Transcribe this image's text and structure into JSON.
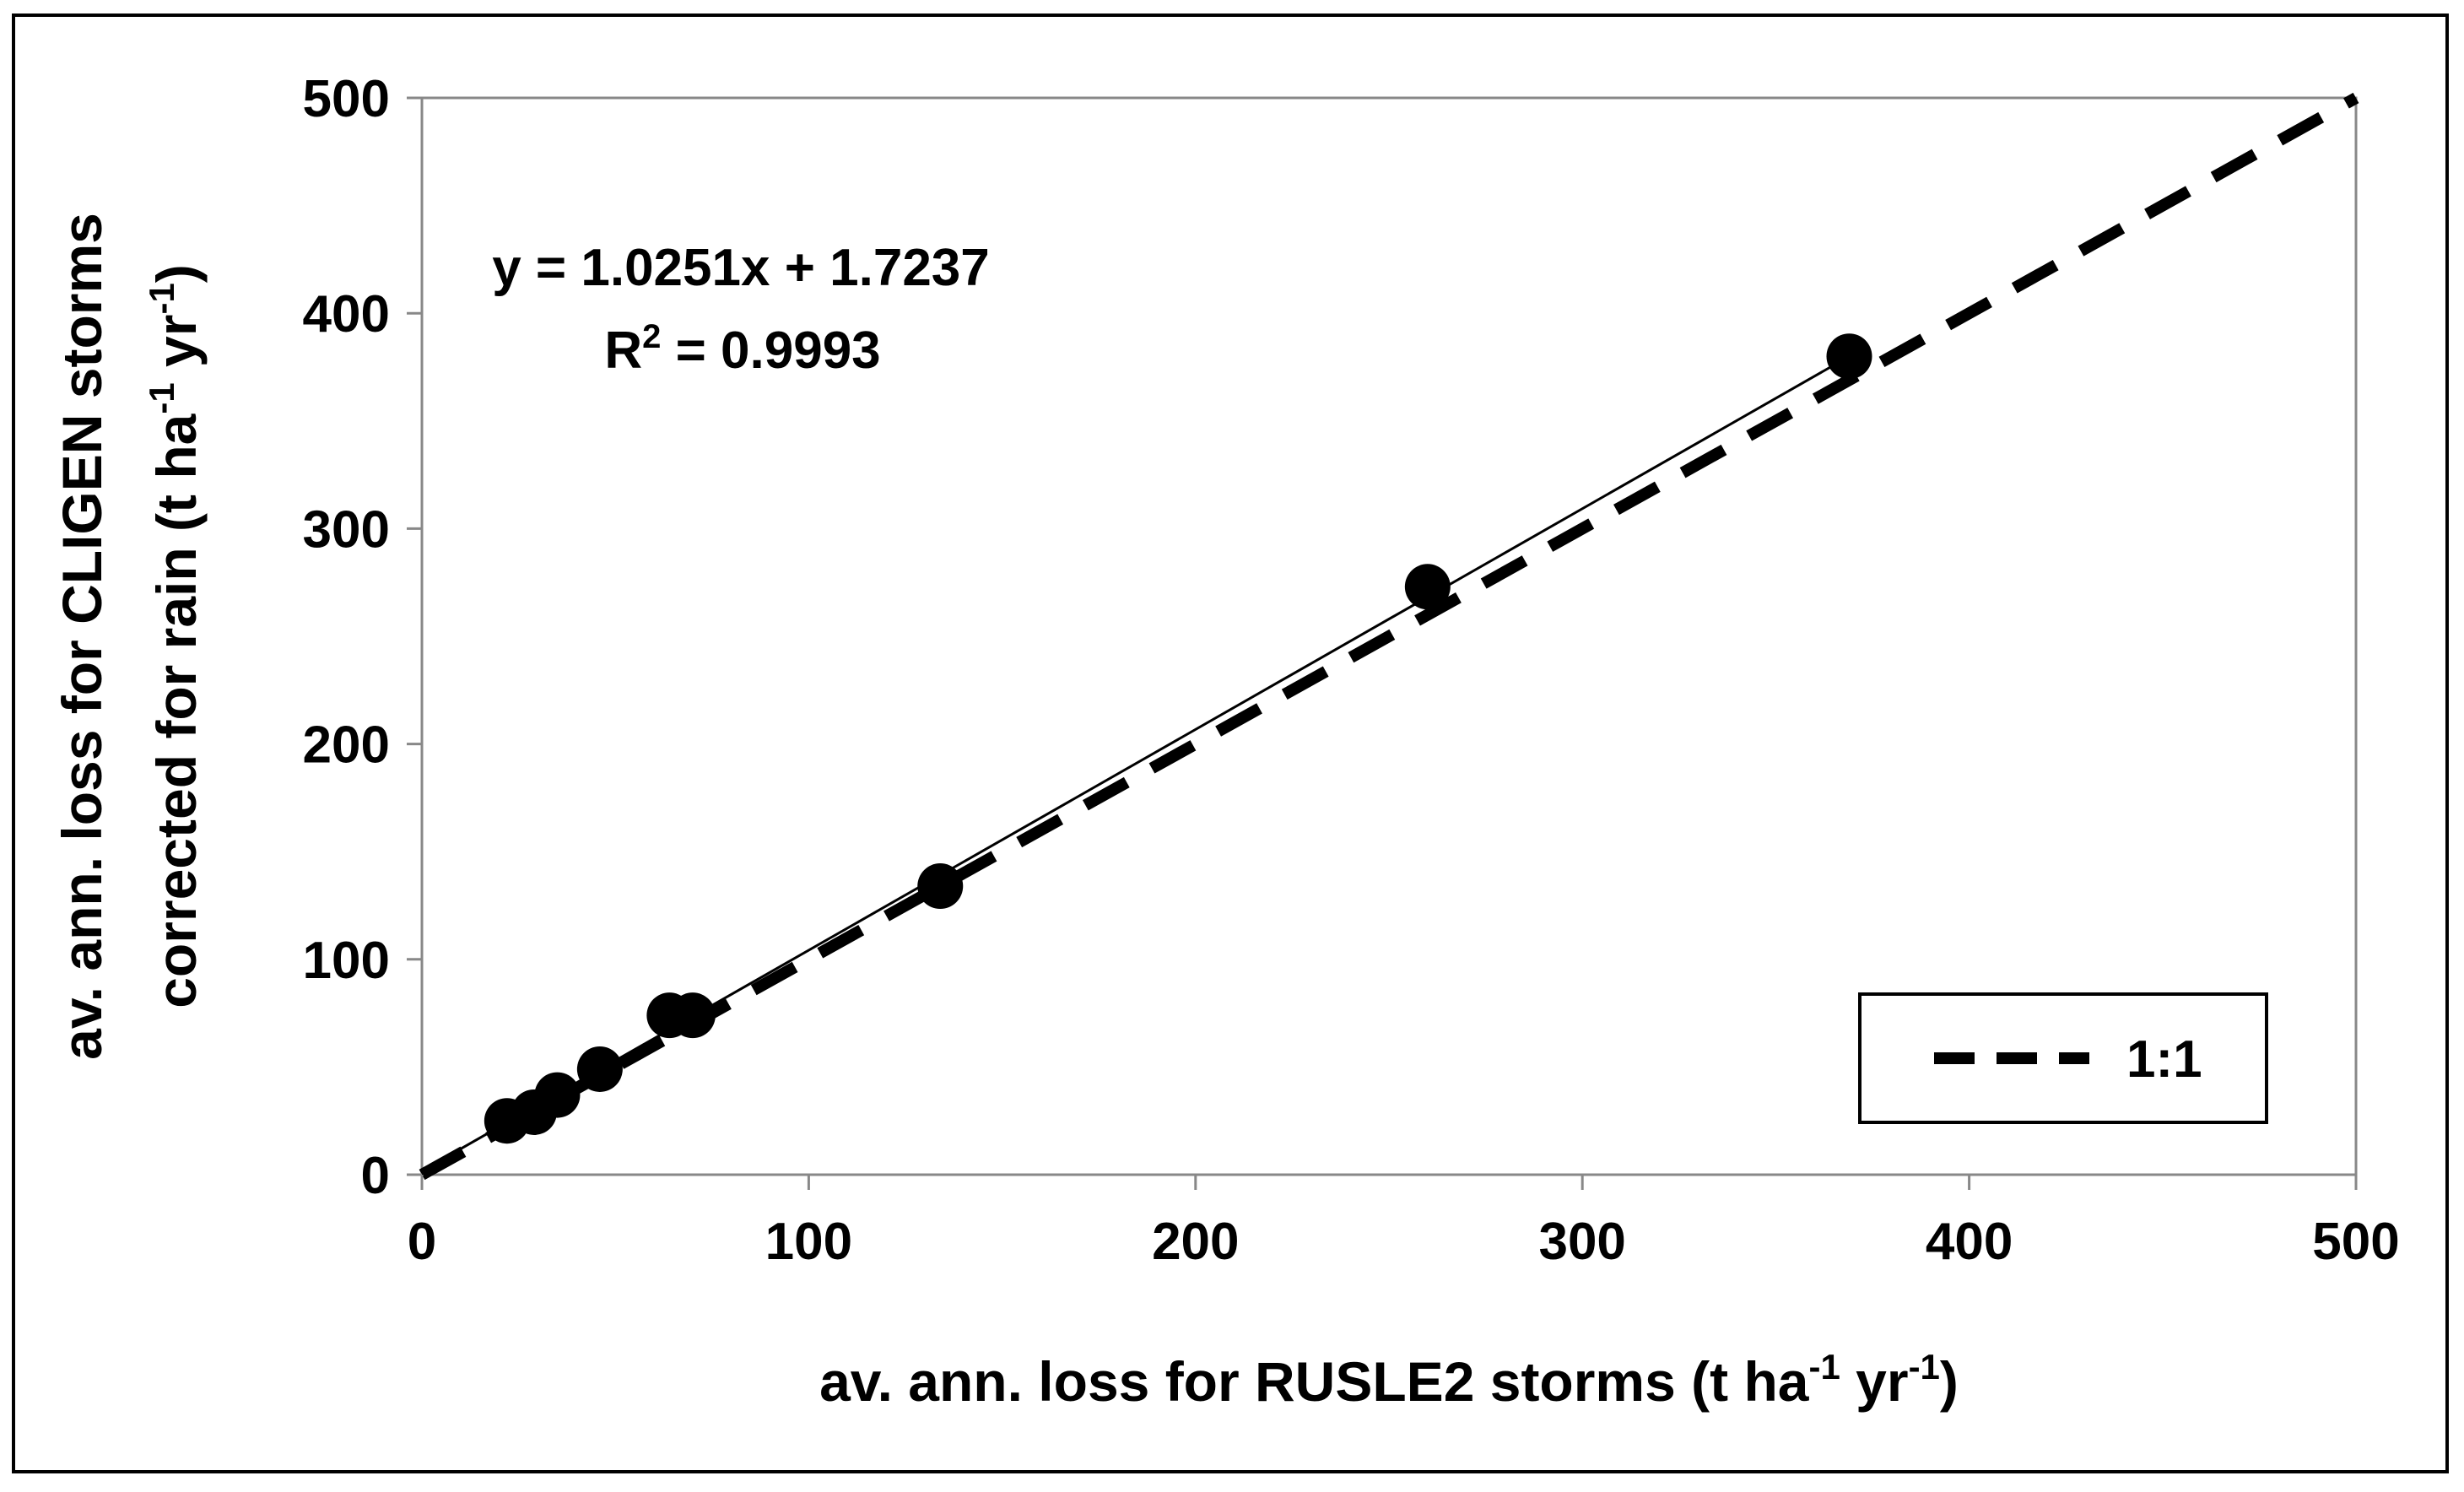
{
  "chart_data": {
    "type": "scatter",
    "xlabel_main": "av. ann. loss for RUSLE2 storms (t ha",
    "xlabel_sup1": "-1",
    "xlabel_mid": " yr",
    "xlabel_sup2": "-1",
    "xlabel_end": ")",
    "ylabel_line1": "av. ann. loss for CLIGEN storms",
    "ylabel_line2_main": "corrected for rain (t ha",
    "ylabel_line2_sup1": "-1",
    "ylabel_line2_mid": " yr",
    "ylabel_line2_sup2": "-1",
    "ylabel_line2_end": ")",
    "xlim": [
      0,
      500
    ],
    "ylim": [
      0,
      500
    ],
    "xticks": [
      0,
      100,
      200,
      300,
      400,
      500
    ],
    "yticks": [
      0,
      100,
      200,
      300,
      400,
      500
    ],
    "grid": false,
    "series": [
      {
        "type": "scatter",
        "marker": "circle",
        "color": "#000000",
        "x": [
          22,
          29,
          35,
          46,
          64,
          70,
          134,
          260,
          369
        ],
        "y": [
          25,
          29,
          37,
          49,
          74,
          74,
          134,
          273,
          380
        ]
      }
    ],
    "trendline": {
      "slope": 1.0251,
      "intercept": 1.7237,
      "x_range": [
        0,
        369
      ],
      "equation": "y = 1.0251x + 1.7237",
      "r2_prefix": "R",
      "r2_sup": "2",
      "r2_value": " = 0.9993",
      "color": "#000000"
    },
    "reference_line": {
      "name": "1:1",
      "x": [
        0,
        500
      ],
      "y": [
        0,
        500
      ],
      "style": "dashed",
      "color": "#000000"
    },
    "legend": {
      "position": "bottom-right",
      "entries": [
        "1:1"
      ]
    }
  }
}
